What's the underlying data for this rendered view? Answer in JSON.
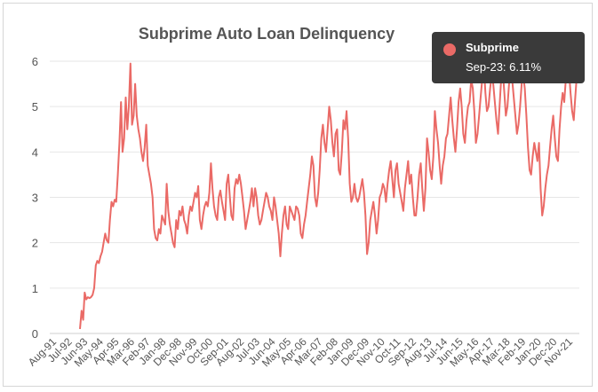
{
  "chart_data": {
    "type": "line",
    "title": "Subprime Auto Loan Delinquency",
    "xlabel": "",
    "ylabel": "",
    "ylim": [
      0,
      6
    ],
    "yticks": [
      0,
      1,
      2,
      3,
      4,
      5,
      6
    ],
    "grid": true,
    "legend": "none",
    "line_color": "#ea6a66",
    "x_tick_labels": [
      "Aug-91",
      "Jul-92",
      "Jun-93",
      "May-94",
      "Apr-95",
      "Mar-96",
      "Feb-97",
      "Jan-98",
      "Dec-98",
      "Nov-99",
      "Oct-00",
      "Sep-01",
      "Aug-02",
      "Jul-03",
      "Jun-04",
      "May-05",
      "Apr-06",
      "Mar-07",
      "Feb-08",
      "Jan-09",
      "Dec-09",
      "Nov-10",
      "Oct-11",
      "Sep-12",
      "Aug-13",
      "Jul-14",
      "Jun-15",
      "May-16",
      "Apr-17",
      "Mar-18",
      "Feb-19",
      "Jan-20",
      "Dec-20",
      "Nov-21"
    ],
    "x_start": "1991-08",
    "series": [
      {
        "name": "Subprime",
        "values": [
          0.1,
          0.5,
          0.3,
          0.9,
          0.75,
          0.8,
          0.78,
          0.8,
          0.85,
          1.0,
          1.5,
          1.6,
          1.55,
          1.7,
          1.8,
          2.0,
          2.2,
          2.05,
          2.0,
          2.5,
          2.9,
          2.8,
          2.95,
          2.9,
          3.5,
          4.2,
          5.1,
          4.0,
          4.3,
          5.2,
          4.5,
          5.0,
          5.95,
          4.6,
          4.8,
          5.5,
          4.8,
          4.5,
          4.3,
          4.0,
          3.8,
          4.1,
          4.6,
          3.7,
          3.5,
          3.3,
          3.0,
          2.3,
          2.1,
          2.05,
          2.3,
          2.2,
          2.6,
          2.5,
          2.4,
          3.3,
          2.7,
          2.4,
          2.2,
          2.0,
          1.9,
          2.5,
          2.3,
          2.7,
          2.6,
          2.8,
          2.5,
          2.4,
          2.2,
          2.6,
          2.8,
          2.7,
          2.9,
          3.1,
          3.0,
          3.25,
          2.5,
          2.3,
          2.6,
          2.8,
          2.9,
          2.8,
          3.1,
          3.75,
          3.2,
          2.8,
          2.6,
          2.5,
          3.0,
          3.15,
          2.9,
          2.7,
          2.5,
          3.3,
          3.5,
          3.0,
          2.6,
          2.5,
          3.2,
          3.4,
          3.3,
          3.5,
          3.3,
          3.0,
          2.7,
          2.3,
          2.5,
          2.7,
          2.9,
          3.2,
          2.8,
          3.2,
          3.0,
          2.6,
          2.4,
          2.5,
          2.7,
          2.9,
          3.1,
          3.0,
          2.8,
          2.7,
          2.5,
          3.0,
          2.8,
          2.5,
          2.2,
          1.7,
          2.2,
          2.6,
          2.8,
          2.4,
          2.3,
          2.8,
          2.7,
          2.6,
          2.5,
          2.8,
          2.75,
          2.6,
          2.2,
          2.1,
          2.4,
          2.6,
          2.9,
          3.2,
          3.5,
          3.9,
          3.7,
          3.0,
          2.8,
          3.1,
          3.6,
          4.3,
          4.6,
          4.2,
          4.0,
          4.5,
          5.0,
          4.7,
          4.2,
          3.9,
          4.4,
          4.5,
          3.6,
          3.5,
          4.0,
          4.7,
          4.5,
          4.9,
          4.3,
          3.3,
          2.9,
          3.0,
          3.3,
          3.0,
          2.9,
          3.0,
          3.2,
          3.4,
          3.1,
          2.6,
          1.75,
          2.0,
          2.5,
          2.7,
          2.9,
          2.6,
          2.2,
          2.5,
          3.0,
          3.1,
          3.3,
          3.2,
          2.9,
          3.3,
          3.6,
          3.8,
          3.4,
          3.0,
          3.6,
          3.75,
          3.3,
          3.1,
          2.9,
          2.7,
          3.2,
          3.5,
          3.8,
          3.3,
          3.5,
          3.0,
          2.6,
          2.6,
          3.0,
          3.5,
          3.75,
          3.2,
          2.7,
          3.2,
          4.3,
          4.0,
          3.6,
          3.4,
          3.9,
          4.9,
          4.5,
          4.2,
          3.7,
          3.3,
          3.7,
          3.9,
          4.3,
          4.4,
          4.8,
          5.2,
          4.7,
          4.3,
          4.0,
          4.5,
          5.1,
          5.4,
          5.0,
          4.4,
          4.2,
          4.7,
          5.0,
          5.1,
          5.6,
          5.4,
          4.9,
          4.2,
          4.4,
          4.8,
          5.2,
          5.6,
          5.9,
          5.3,
          4.9,
          5.0,
          5.4,
          5.7,
          5.5,
          5.1,
          4.7,
          4.4,
          5.0,
          5.6,
          5.8,
          5.3,
          4.8,
          5.0,
          5.5,
          5.8,
          5.6,
          5.2,
          4.8,
          4.4,
          4.6,
          5.0,
          5.5,
          5.7,
          5.4,
          4.8,
          4.1,
          3.6,
          3.5,
          3.9,
          4.2,
          4.0,
          3.8,
          4.2,
          3.2,
          2.6,
          2.8,
          3.2,
          3.5,
          3.7,
          4.1,
          4.5,
          4.8,
          4.3,
          3.9,
          3.8,
          4.5,
          5.0,
          5.3,
          5.1,
          5.6,
          5.9,
          5.8,
          5.3,
          4.9,
          4.7,
          5.2,
          5.7,
          6.11
        ]
      }
    ],
    "highlight": {
      "index": 385
    }
  },
  "tooltip": {
    "series": "Subprime",
    "value": "Sep-23: 6.11%",
    "color": "#ea6a66"
  }
}
